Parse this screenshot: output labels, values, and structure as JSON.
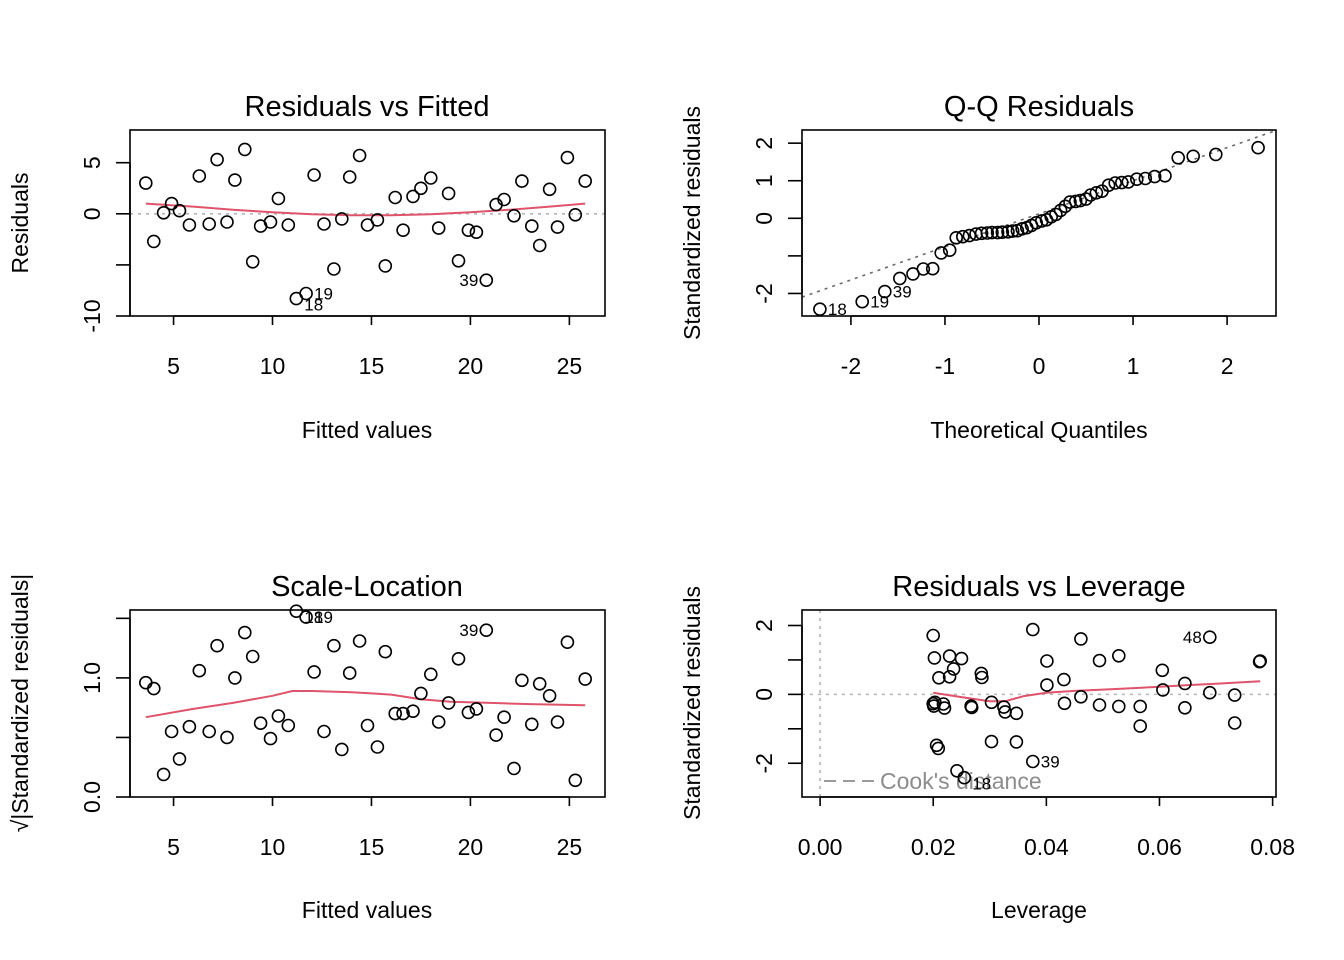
{
  "figure": {
    "description": "R lm diagnostic plots (2x2)"
  },
  "colors": {
    "smooth": "#DF536B",
    "reference": "#9E9E9E",
    "points": "#000000",
    "cook_legend": "#8C8C8C"
  },
  "chart_data": [
    {
      "id": "residuals-vs-fitted",
      "type": "scatter",
      "title": "Residuals vs Fitted",
      "xlabel": "Fitted values",
      "ylabel": "Residuals",
      "xlim": [
        2.8,
        26.8
      ],
      "ylim": [
        -10,
        8.2
      ],
      "xticks": [
        5,
        10,
        15,
        20,
        25
      ],
      "yticks": [
        -10,
        -5,
        0,
        5
      ],
      "ytick_labels": [
        "-10",
        "",
        "0",
        "5"
      ],
      "reference_line": {
        "type": "horizontal",
        "y": 0,
        "style": "dotted"
      },
      "points": [
        [
          3.6,
          3.0
        ],
        [
          4.0,
          -2.7
        ],
        [
          4.5,
          0.1
        ],
        [
          4.9,
          1.0
        ],
        [
          5.3,
          0.3
        ],
        [
          5.8,
          -1.1
        ],
        [
          6.3,
          3.7
        ],
        [
          6.8,
          -1.0
        ],
        [
          7.2,
          5.3
        ],
        [
          7.7,
          -0.8
        ],
        [
          8.1,
          3.3
        ],
        [
          8.6,
          6.3
        ],
        [
          9.0,
          -4.7
        ],
        [
          9.4,
          -1.2
        ],
        [
          9.9,
          -0.8
        ],
        [
          10.3,
          1.5
        ],
        [
          10.8,
          -1.1
        ],
        [
          11.2,
          -8.3
        ],
        [
          11.7,
          -7.8
        ],
        [
          12.1,
          3.8
        ],
        [
          12.6,
          -1.0
        ],
        [
          13.1,
          -5.4
        ],
        [
          13.5,
          -0.5
        ],
        [
          13.9,
          3.6
        ],
        [
          14.4,
          5.7
        ],
        [
          14.8,
          -1.1
        ],
        [
          15.3,
          -0.6
        ],
        [
          15.7,
          -5.1
        ],
        [
          16.2,
          1.6
        ],
        [
          16.6,
          -1.6
        ],
        [
          17.1,
          1.7
        ],
        [
          17.5,
          2.5
        ],
        [
          18.0,
          3.5
        ],
        [
          18.4,
          -1.4
        ],
        [
          18.9,
          2.0
        ],
        [
          19.4,
          -4.6
        ],
        [
          19.9,
          -1.6
        ],
        [
          20.3,
          -1.8
        ],
        [
          20.8,
          -6.5
        ],
        [
          21.3,
          0.9
        ],
        [
          21.7,
          1.4
        ],
        [
          22.2,
          -0.2
        ],
        [
          22.6,
          3.2
        ],
        [
          23.1,
          -1.2
        ],
        [
          23.5,
          -3.1
        ],
        [
          24.0,
          2.4
        ],
        [
          24.4,
          -1.3
        ],
        [
          24.9,
          5.5
        ],
        [
          25.3,
          -0.1
        ],
        [
          25.8,
          3.2
        ]
      ],
      "point_labels": [
        {
          "label": "18",
          "x": 11.2,
          "y": -8.3
        },
        {
          "label": "19",
          "x": 11.7,
          "y": -7.8
        },
        {
          "label": "39",
          "x": 20.8,
          "y": -6.5
        }
      ],
      "smooth": {
        "x": [
          3.6,
          6,
          8,
          10,
          12,
          14,
          16,
          18,
          20,
          22,
          24,
          25.8
        ],
        "y": [
          1.0,
          0.7,
          0.4,
          0.15,
          -0.05,
          -0.15,
          -0.15,
          -0.05,
          0.15,
          0.4,
          0.7,
          1.0
        ]
      }
    },
    {
      "id": "qq-residuals",
      "type": "scatter",
      "title": "Q-Q Residuals",
      "xlabel": "Theoretical Quantiles",
      "ylabel": "Standardized residuals",
      "xlim": [
        -2.52,
        2.52
      ],
      "ylim": [
        -2.6,
        2.35
      ],
      "xticks": [
        -2,
        -1,
        0,
        1,
        2
      ],
      "yticks": [
        -2,
        -1,
        0,
        1,
        2
      ],
      "ytick_labels": [
        "-2",
        "",
        "0",
        "1",
        "2"
      ],
      "reference_line": {
        "type": "abline",
        "intercept": 0.12,
        "slope": 0.88,
        "style": "dotted"
      },
      "points": [
        [
          -2.33,
          -2.42
        ],
        [
          -1.88,
          -2.22
        ],
        [
          -1.64,
          -1.95
        ],
        [
          -1.48,
          -1.6
        ],
        [
          -1.34,
          -1.48
        ],
        [
          -1.23,
          -1.35
        ],
        [
          -1.13,
          -1.34
        ],
        [
          -1.04,
          -0.92
        ],
        [
          -0.95,
          -0.85
        ],
        [
          -0.88,
          -0.52
        ],
        [
          -0.81,
          -0.49
        ],
        [
          -0.74,
          -0.46
        ],
        [
          -0.67,
          -0.42
        ],
        [
          -0.61,
          -0.4
        ],
        [
          -0.55,
          -0.39
        ],
        [
          -0.5,
          -0.38
        ],
        [
          -0.44,
          -0.38
        ],
        [
          -0.39,
          -0.37
        ],
        [
          -0.33,
          -0.36
        ],
        [
          -0.28,
          -0.34
        ],
        [
          -0.23,
          -0.33
        ],
        [
          -0.18,
          -0.28
        ],
        [
          -0.13,
          -0.25
        ],
        [
          -0.08,
          -0.19
        ],
        [
          -0.03,
          -0.12
        ],
        [
          0.03,
          -0.07
        ],
        [
          0.08,
          -0.04
        ],
        [
          0.13,
          0.04
        ],
        [
          0.18,
          0.1
        ],
        [
          0.23,
          0.21
        ],
        [
          0.28,
          0.32
        ],
        [
          0.33,
          0.43
        ],
        [
          0.39,
          0.45
        ],
        [
          0.44,
          0.47
        ],
        [
          0.5,
          0.51
        ],
        [
          0.55,
          0.62
        ],
        [
          0.61,
          0.68
        ],
        [
          0.67,
          0.72
        ],
        [
          0.74,
          0.88
        ],
        [
          0.81,
          0.94
        ],
        [
          0.88,
          0.95
        ],
        [
          0.95,
          0.97
        ],
        [
          1.04,
          1.04
        ],
        [
          1.13,
          1.06
        ],
        [
          1.23,
          1.11
        ],
        [
          1.34,
          1.13
        ],
        [
          1.48,
          1.61
        ],
        [
          1.64,
          1.65
        ],
        [
          1.88,
          1.7
        ],
        [
          2.33,
          1.88
        ]
      ],
      "point_labels": [
        {
          "label": "18",
          "x": -2.33,
          "y": -2.42
        },
        {
          "label": "19",
          "x": -1.88,
          "y": -2.22
        },
        {
          "label": "39",
          "x": -1.64,
          "y": -1.95
        }
      ]
    },
    {
      "id": "scale-location",
      "type": "scatter",
      "title": "Scale-Location",
      "xlabel": "Fitted values",
      "ylabel": "√|Standardized residuals|",
      "xlim": [
        2.8,
        26.8
      ],
      "ylim": [
        0,
        1.57
      ],
      "xticks": [
        5,
        10,
        15,
        20,
        25
      ],
      "yticks": [
        0.0,
        0.5,
        1.0,
        1.5
      ],
      "ytick_labels": [
        "0.0",
        "",
        "1.0",
        ""
      ],
      "points": [
        [
          3.6,
          0.96
        ],
        [
          4.0,
          0.91
        ],
        [
          4.5,
          0.19
        ],
        [
          4.9,
          0.55
        ],
        [
          5.3,
          0.32
        ],
        [
          5.8,
          0.59
        ],
        [
          6.3,
          1.06
        ],
        [
          6.8,
          0.55
        ],
        [
          7.2,
          1.27
        ],
        [
          7.7,
          0.5
        ],
        [
          8.1,
          1.0
        ],
        [
          8.6,
          1.38
        ],
        [
          9.0,
          1.18
        ],
        [
          9.4,
          0.62
        ],
        [
          9.9,
          0.49
        ],
        [
          10.3,
          0.68
        ],
        [
          10.8,
          0.6
        ],
        [
          11.2,
          1.56
        ],
        [
          11.7,
          1.51
        ],
        [
          12.1,
          1.05
        ],
        [
          12.6,
          0.55
        ],
        [
          13.1,
          1.27
        ],
        [
          13.5,
          0.4
        ],
        [
          13.9,
          1.04
        ],
        [
          14.4,
          1.31
        ],
        [
          14.8,
          0.6
        ],
        [
          15.3,
          0.42
        ],
        [
          15.7,
          1.22
        ],
        [
          16.2,
          0.7
        ],
        [
          16.6,
          0.7
        ],
        [
          17.1,
          0.72
        ],
        [
          17.5,
          0.87
        ],
        [
          18.0,
          1.03
        ],
        [
          18.4,
          0.63
        ],
        [
          18.9,
          0.79
        ],
        [
          19.4,
          1.16
        ],
        [
          19.9,
          0.71
        ],
        [
          20.3,
          0.74
        ],
        [
          20.8,
          1.4
        ],
        [
          21.3,
          0.52
        ],
        [
          21.7,
          0.67
        ],
        [
          22.2,
          0.24
        ],
        [
          22.6,
          0.98
        ],
        [
          23.1,
          0.61
        ],
        [
          23.5,
          0.95
        ],
        [
          24.0,
          0.85
        ],
        [
          24.4,
          0.63
        ],
        [
          24.9,
          1.3
        ],
        [
          25.3,
          0.14
        ],
        [
          25.8,
          0.99
        ]
      ],
      "point_labels": [
        {
          "label": "18",
          "x": 11.2,
          "y": 1.56
        },
        {
          "label": "19",
          "x": 11.7,
          "y": 1.51
        },
        {
          "label": "39",
          "x": 20.8,
          "y": 1.4
        }
      ],
      "smooth": {
        "x": [
          3.6,
          6,
          8,
          10,
          11,
          12,
          14,
          16,
          17.5,
          19,
          21,
          23,
          25.8
        ],
        "y": [
          0.67,
          0.74,
          0.79,
          0.85,
          0.89,
          0.89,
          0.88,
          0.86,
          0.82,
          0.8,
          0.79,
          0.78,
          0.77
        ]
      }
    },
    {
      "id": "residuals-vs-leverage",
      "type": "scatter",
      "title": "Residuals vs Leverage",
      "xlabel": "Leverage",
      "ylabel": "Standardized residuals",
      "xlim": [
        -0.0032,
        0.0806
      ],
      "ylim": [
        -2.98,
        2.45
      ],
      "xticks": [
        0.0,
        0.02,
        0.04,
        0.06,
        0.08
      ],
      "xtick_labels": [
        "0.00",
        "0.02",
        "0.04",
        "0.06",
        "0.08"
      ],
      "yticks": [
        -2,
        -1,
        0,
        1,
        2
      ],
      "ytick_labels": [
        "-2",
        "",
        "0",
        "",
        "2"
      ],
      "reference_lines": [
        {
          "type": "horizontal",
          "y": 0,
          "style": "dotted"
        },
        {
          "type": "vertical",
          "x": 0,
          "style": "dotted"
        }
      ],
      "legend": {
        "label": "Cook's distance",
        "position": "bottom-left",
        "style": "dashed"
      },
      "points": [
        [
          0.02,
          1.71
        ],
        [
          0.0202,
          1.06
        ],
        [
          0.02,
          -0.27
        ],
        [
          0.0201,
          -0.34
        ],
        [
          0.0203,
          -0.23
        ],
        [
          0.0206,
          -1.48
        ],
        [
          0.0209,
          -1.57
        ],
        [
          0.021,
          0.48
        ],
        [
          0.0218,
          -0.28
        ],
        [
          0.022,
          -0.4
        ],
        [
          0.0229,
          1.11
        ],
        [
          0.0229,
          0.51
        ],
        [
          0.0236,
          0.74
        ],
        [
          0.0242,
          -2.22
        ],
        [
          0.025,
          1.04
        ],
        [
          0.0255,
          -2.42
        ],
        [
          0.0267,
          -0.34
        ],
        [
          0.0268,
          -0.38
        ],
        [
          0.0285,
          0.61
        ],
        [
          0.0286,
          0.49
        ],
        [
          0.0303,
          -0.23
        ],
        [
          0.0303,
          -1.37
        ],
        [
          0.0325,
          -0.37
        ],
        [
          0.0327,
          -0.51
        ],
        [
          0.0347,
          -0.55
        ],
        [
          0.0347,
          -1.38
        ],
        [
          0.0376,
          1.88
        ],
        [
          0.0376,
          -1.95
        ],
        [
          0.0401,
          0.97
        ],
        [
          0.0401,
          0.27
        ],
        [
          0.0431,
          0.43
        ],
        [
          0.0432,
          -0.26
        ],
        [
          0.0461,
          1.61
        ],
        [
          0.0461,
          -0.07
        ],
        [
          0.0494,
          0.98
        ],
        [
          0.0494,
          -0.31
        ],
        [
          0.0528,
          1.12
        ],
        [
          0.0528,
          -0.35
        ],
        [
          0.0566,
          -0.35
        ],
        [
          0.0566,
          -0.92
        ],
        [
          0.0605,
          0.7
        ],
        [
          0.0606,
          0.13
        ],
        [
          0.0645,
          0.32
        ],
        [
          0.0645,
          -0.39
        ],
        [
          0.0689,
          0.05
        ],
        [
          0.0689,
          1.66
        ],
        [
          0.0733,
          -0.02
        ],
        [
          0.0733,
          -0.83
        ],
        [
          0.0777,
          0.95
        ],
        [
          0.0778,
          0.97
        ]
      ],
      "point_labels": [
        {
          "label": "18",
          "x": 0.0255,
          "y": -2.42
        },
        {
          "label": "39",
          "x": 0.0376,
          "y": -1.95
        },
        {
          "label": "48",
          "x": 0.0689,
          "y": 1.66
        }
      ],
      "smooth": {
        "x": [
          0.02,
          0.025,
          0.03,
          0.0327,
          0.036,
          0.04,
          0.045,
          0.05,
          0.055,
          0.06,
          0.065,
          0.07,
          0.0778
        ],
        "y": [
          0.05,
          -0.08,
          -0.2,
          -0.2,
          -0.05,
          0.05,
          0.1,
          0.14,
          0.18,
          0.22,
          0.27,
          0.31,
          0.38
        ]
      }
    }
  ]
}
